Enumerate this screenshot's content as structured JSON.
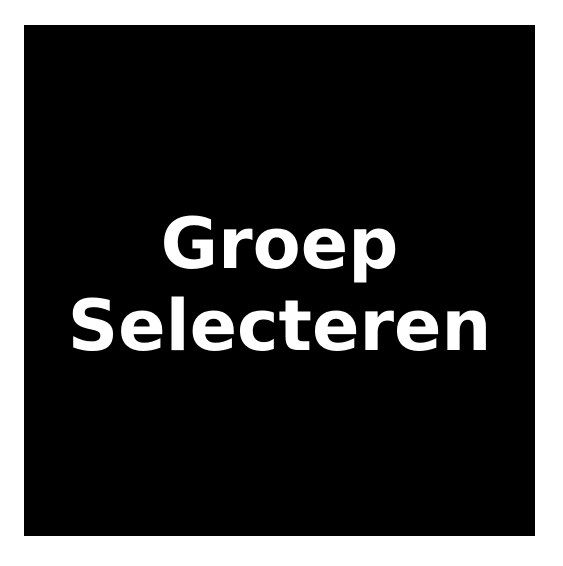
{
  "button": {
    "line1": "Groep",
    "line2": "Selecteren"
  },
  "colors": {
    "background": "#ffffff",
    "tile": "#000000",
    "text": "#ffffff"
  }
}
